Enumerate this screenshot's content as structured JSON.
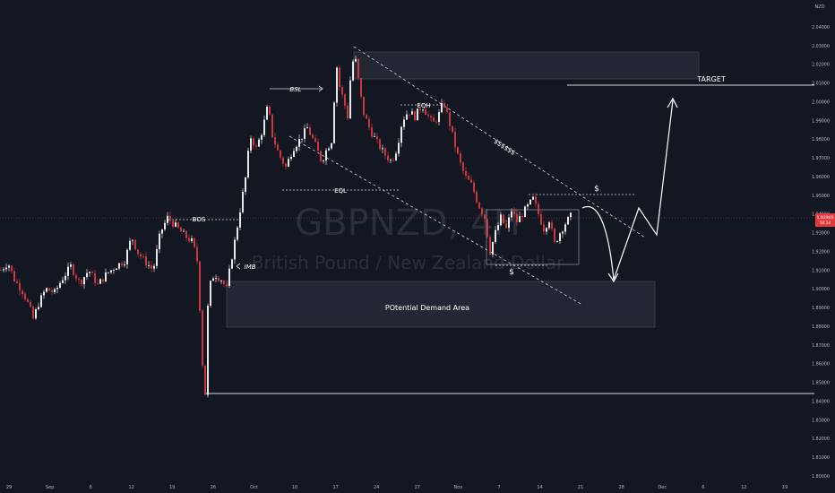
{
  "chart_data": {
    "type": "candlestick",
    "symbol": "GBPNZD",
    "timeframe": "4H",
    "instrument_name": "British Pound / New Zealand Dollar",
    "watermark": "GBPNZD, 4H",
    "currency": "NZD",
    "last_price": "1.93946",
    "last_price_sub": "50:14",
    "ylim": [
      1.8,
      2.05
    ],
    "y_ticks": [
      "2.04000",
      "2.03000",
      "2.02000",
      "2.01000",
      "2.00000",
      "1.99000",
      "1.98000",
      "1.97000",
      "1.96000",
      "1.95000",
      "1.94000",
      "1.93000",
      "1.92000",
      "1.91000",
      "1.90000",
      "1.89000",
      "1.88000",
      "1.87000",
      "1.86000",
      "1.85000",
      "1.84000",
      "1.83000",
      "1.82000",
      "1.81000",
      "1.80000"
    ],
    "x_ticks": [
      "29",
      "Sep",
      "6",
      "12",
      "19",
      "26",
      "Oct",
      "10",
      "17",
      "24",
      "27",
      "Nov",
      "7",
      "14",
      "21",
      "28",
      "Dec",
      "6",
      "12",
      "19"
    ],
    "annotations": {
      "bos": "BOS",
      "bsl": "BSL",
      "eqh": "EQH",
      "eql": "EQL",
      "imb": "IMB",
      "sss": "$$$$$$",
      "dollar_top": "$",
      "dollar_bottom": "$",
      "target": "TARGET",
      "demand": "POtential Demand Area"
    },
    "colors": {
      "background": "#131722",
      "up": "#ffffff",
      "down": "#e03a3e",
      "grid_text": "#b2b5be",
      "accent": "#e03a3e"
    }
  }
}
